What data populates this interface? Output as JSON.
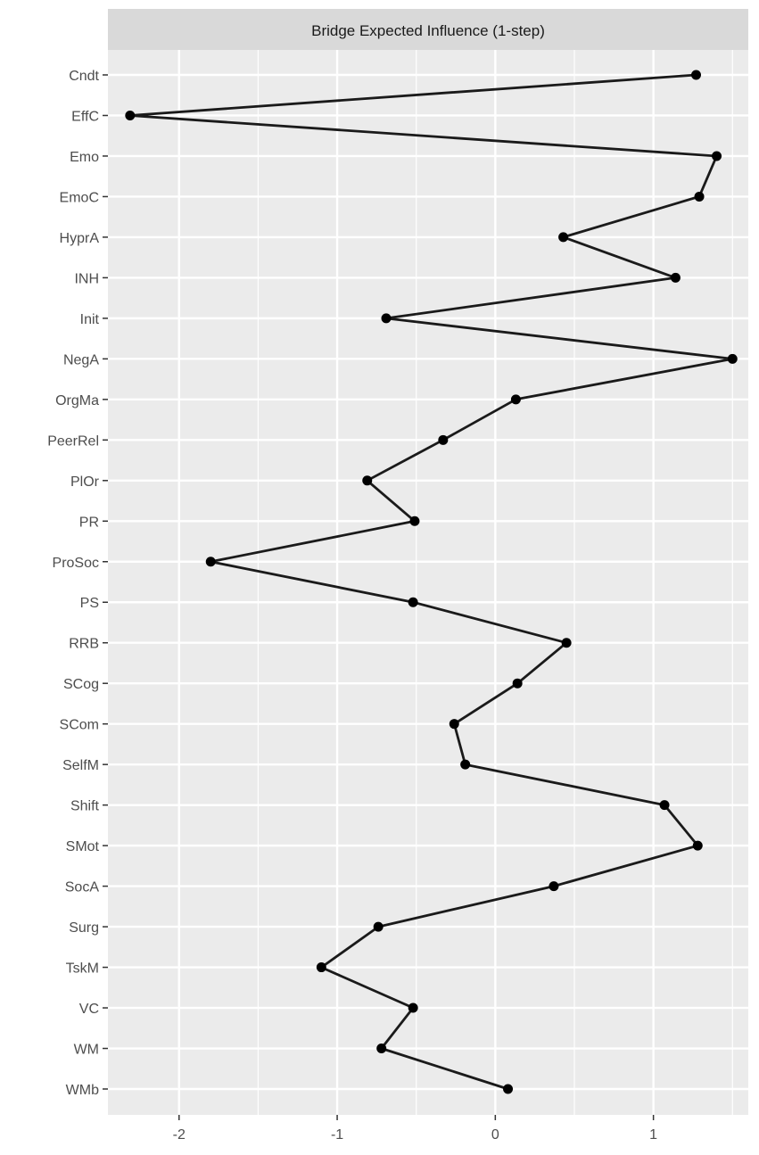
{
  "chart_data": {
    "type": "line",
    "title": "",
    "facet_label": "Bridge Expected Influence (1-step)",
    "xlabel": "",
    "ylabel": "",
    "xlim": [
      -2.45,
      1.6
    ],
    "x_ticks": [
      -2,
      -1,
      0,
      1
    ],
    "x_tick_labels": [
      "-2",
      "-1",
      "0",
      "1"
    ],
    "grid": true,
    "legend": "none",
    "colors": {
      "panel": "#ebebeb",
      "grid": "#ffffff",
      "strip": "#d9d9d9",
      "line": "#1a1a1a",
      "point": "#000000"
    },
    "categories": [
      "Cndt",
      "EffC",
      "Emo",
      "EmoC",
      "HyprA",
      "INH",
      "Init",
      "NegA",
      "OrgMa",
      "PeerRel",
      "PlOr",
      "PR",
      "ProSoc",
      "PS",
      "RRB",
      "SCog",
      "SCom",
      "SelfM",
      "Shift",
      "SMot",
      "SocA",
      "Surg",
      "TskM",
      "VC",
      "WM",
      "WMb"
    ],
    "values": [
      1.27,
      -2.31,
      1.4,
      1.29,
      0.43,
      1.14,
      -0.69,
      1.5,
      0.13,
      -0.33,
      -0.81,
      -0.51,
      -1.8,
      -0.52,
      0.45,
      0.14,
      -0.26,
      -0.19,
      1.07,
      1.28,
      0.37,
      -0.74,
      -1.1,
      -0.52,
      -0.72,
      0.08
    ]
  }
}
